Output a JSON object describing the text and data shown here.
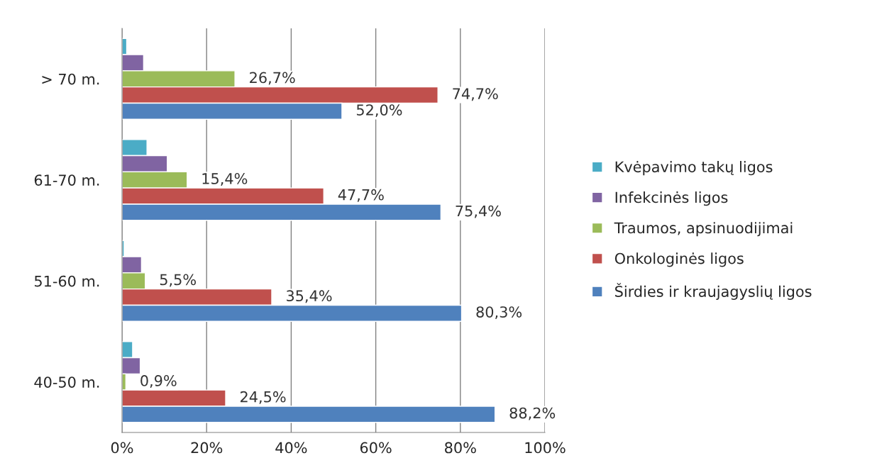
{
  "chart_data": {
    "type": "bar",
    "orientation": "horizontal",
    "categories": [
      "> 70 m.",
      "61-70 m.",
      "51-60 m.",
      "40-50 m."
    ],
    "series": [
      {
        "name": "Kvėpavimo takų ligos",
        "color": "#4bacc6",
        "values": [
          1.1,
          5.9,
          0.5,
          2.5
        ]
      },
      {
        "name": "Infekcinės ligos",
        "color": "#8064a2",
        "values": [
          5.1,
          10.7,
          4.6,
          4.3
        ]
      },
      {
        "name": "Traumos, apsinuodijimai",
        "color": "#9bbb59",
        "values": [
          26.7,
          15.4,
          5.5,
          0.9
        ],
        "value_labels": [
          "26,7%",
          "15,4%",
          "5,5%",
          "0,9%"
        ]
      },
      {
        "name": "Onkologinės ligos",
        "color": "#c0504d",
        "values": [
          74.7,
          47.7,
          35.4,
          24.5
        ],
        "value_labels": [
          "74,7%",
          "47,7%",
          "35,4%",
          "24,5%"
        ]
      },
      {
        "name": "Širdies ir kraujagyslių ligos",
        "color": "#4f81bd",
        "values": [
          52.0,
          75.4,
          80.3,
          88.2
        ],
        "value_labels": [
          "52,0%",
          "75,4%",
          "80,3%",
          "88,2%"
        ]
      }
    ],
    "xlim": [
      0,
      100
    ],
    "xticks": [
      {
        "value": 0,
        "label": "0%"
      },
      {
        "value": 20,
        "label": "20%"
      },
      {
        "value": 40,
        "label": "40%"
      },
      {
        "value": 60,
        "label": "60%"
      },
      {
        "value": 80,
        "label": "80%"
      },
      {
        "value": 100,
        "label": "100%"
      }
    ],
    "grid": "x",
    "legend": "right"
  }
}
